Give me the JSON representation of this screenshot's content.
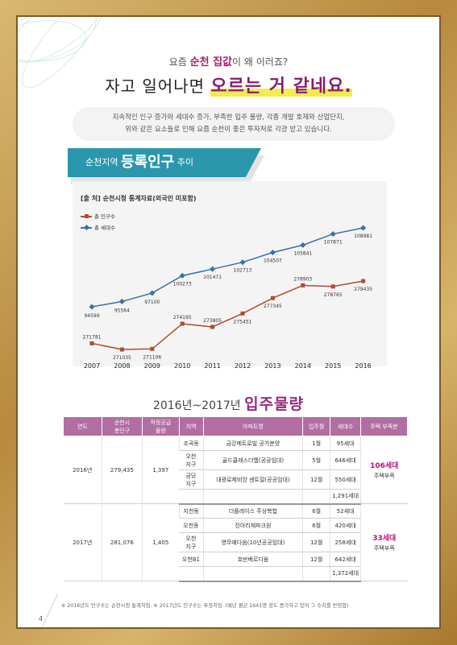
{
  "header": {
    "subhead_pre": "요즘 ",
    "subhead_em": "순천 집값",
    "subhead_post": "이 왜 이러죠?",
    "headline_pre": "자고 일어나면 ",
    "headline_em": "오르는 거 같네요.",
    "desc_line1": "지속적인 인구 증가와 세대수 증가, 부족한 입주 물량, 각종 개발 호재와 산업단지,",
    "desc_line2": "위와 같은 요소들로 인해 요즘 순천이 좋은 투자처로 각광 받고 있습니다."
  },
  "banner": {
    "pre": "순천지역 ",
    "big": "등록인구",
    "post": " 추이"
  },
  "chart_data": {
    "type": "line",
    "source": "[출 처] 순천시청 통계자료(외국인 미포함)",
    "x": [
      "2007",
      "2008",
      "2009",
      "2010",
      "2011",
      "2012",
      "2013",
      "2014",
      "2015",
      "2016"
    ],
    "series": [
      {
        "name": "총 인구수",
        "color": "#b34a36",
        "values": [
          271781,
          271035,
          271106,
          274195,
          273805,
          275451,
          277345,
          278903,
          278765,
          279435
        ]
      },
      {
        "name": "총 세대수",
        "color": "#3b6fa8",
        "values": [
          94599,
          95564,
          97100,
          100273,
          101471,
          102713,
          104507,
          105841,
          107871,
          108981
        ]
      }
    ],
    "labels": {
      "pop": [
        "271781",
        "271035",
        "271106",
        "274195",
        "273805",
        "275451",
        "277345",
        "278903",
        "278765",
        "279435"
      ],
      "hh": [
        "94599",
        "95564",
        "97100",
        "100273",
        "101471",
        "102713",
        "104507",
        "105841",
        "107871",
        "108981"
      ]
    }
  },
  "section": {
    "pre": "2016년~2017년 ",
    "em": "입주물량"
  },
  "table": {
    "headers": [
      "연도",
      "순천시\n총인구",
      "적정공급\n물량",
      "지역",
      "아파트명",
      "입주월",
      "세대수",
      "주택 부족분"
    ],
    "y2016": {
      "year": "2016년",
      "pop": "279,435",
      "supply": "1,397",
      "rows": [
        {
          "area": "조곡동",
          "apt": "금강메트로빌 공가분양",
          "month": "1월",
          "units": "95세대"
        },
        {
          "area": "오천\n지구",
          "apt": "골드클래스더헬(공공임대)",
          "month": "5월",
          "units": "646세대"
        },
        {
          "area": "금당\n지구",
          "apt": "대광로제비앙 센트럴(공공임대)",
          "month": "12월",
          "units": "550세대"
        }
      ],
      "total": "1,291세대",
      "short_value": "106세대",
      "short_label": "주택부족"
    },
    "y2017": {
      "year": "2017년",
      "pop": "281,076",
      "supply": "1,405",
      "rows": [
        {
          "area": "지천동",
          "apt": "더플레이스 주상복합",
          "month": "6월",
          "units": "52세대"
        },
        {
          "area": "오천동",
          "apt": "진아리채파크원",
          "month": "6월",
          "units": "420세대"
        },
        {
          "area": "오천\n지구",
          "apt": "영무예다음(10년공공임대)",
          "month": "12월",
          "units": "258세대"
        },
        {
          "area": "오천B1",
          "apt": "호반베르디움",
          "month": "12월",
          "units": "642세대"
        }
      ],
      "total": "1,372세대",
      "short_value": "33세대",
      "short_label": "주택부족"
    }
  },
  "footnote": "※ 2016년도 인구수는 순천시청 통계치임. ※ 2017년도 인구수는 추정치임. (매년 평균 1641명 정도 증가하고 있어 그 수치를 반영함)",
  "page_number": "4",
  "colors": {
    "accent": "#8a1b6e",
    "banner": "#2a97ad",
    "table_header": "#b26ea3",
    "pop_line": "#b34a36",
    "hh_line": "#3b6fa8"
  }
}
